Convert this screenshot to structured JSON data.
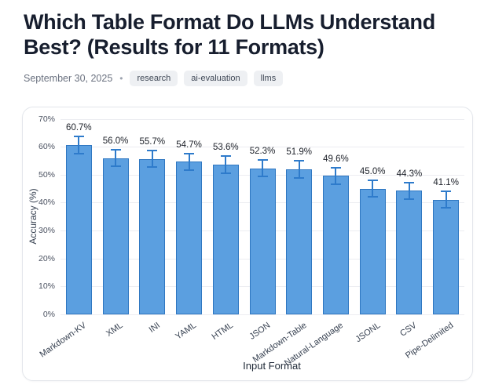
{
  "header": {
    "title": "Which Table Format Do LLMs Understand Best? (Results for 11 Formats)",
    "date": "September 30, 2025",
    "separator": "•",
    "tags": [
      "research",
      "ai-evaluation",
      "llms"
    ]
  },
  "chart_data": {
    "type": "bar",
    "title": "",
    "xlabel": "Input Format",
    "ylabel": "Accuracy (%)",
    "ylim": [
      0,
      70
    ],
    "ytick_values": [
      0,
      10,
      20,
      30,
      40,
      50,
      60,
      70
    ],
    "ytick_labels": [
      "0%",
      "10%",
      "20%",
      "30%",
      "40%",
      "50%",
      "60%",
      "70%"
    ],
    "grid": true,
    "legend": "none",
    "categories": [
      "Markdown-KV",
      "XML",
      "INI",
      "YAML",
      "HTML",
      "JSON",
      "Markdown-Table",
      "Natural-Language",
      "JSONL",
      "CSV",
      "Pipe-Delimited"
    ],
    "values": [
      60.7,
      56.0,
      55.7,
      54.7,
      53.6,
      52.3,
      51.9,
      49.6,
      45.0,
      44.3,
      41.1
    ],
    "errors": [
      3.0,
      3.0,
      3.0,
      3.0,
      3.0,
      3.0,
      3.0,
      3.0,
      3.0,
      3.0,
      3.0
    ],
    "value_labels": [
      "60.7%",
      "56.0%",
      "55.7%",
      "54.7%",
      "53.6%",
      "52.3%",
      "51.9%",
      "49.6%",
      "45.0%",
      "44.3%",
      "41.1%"
    ],
    "colors": {
      "bar_fill": "#5B9FE0",
      "bar_border": "#2F77C1",
      "error_bar": "#2E7BCB",
      "grid_line": "#ECEDF1"
    }
  },
  "page_colors": {
    "title_text": "#171E2E",
    "meta_text": "#6B7280",
    "tag_background": "#EEF0F3",
    "tag_text": "#3F4856",
    "card_border": "#E3E6EB"
  }
}
